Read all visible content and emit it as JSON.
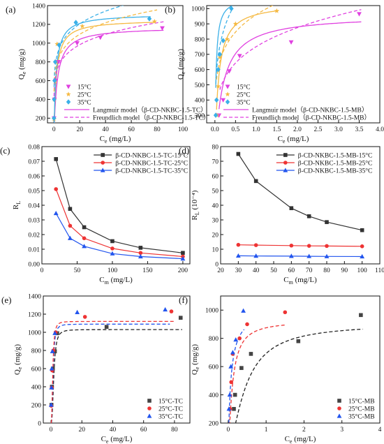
{
  "figure": {
    "panels": [
      "a",
      "b",
      "c",
      "d",
      "e",
      "f"
    ]
  },
  "chart_data": [
    {
      "id": "a",
      "panel_label": "(a)",
      "type": "scatter",
      "xlabel": "Ce (mg/L)",
      "ylabel": "Qe (mg/g)",
      "xlim": [
        -5,
        100
      ],
      "ylim": [
        150,
        1400
      ],
      "xticks": [
        0,
        20,
        40,
        60,
        80,
        100
      ],
      "yticks": [
        200,
        400,
        600,
        800,
        1000,
        1200,
        1400
      ],
      "legend_position": "bottom-right",
      "series": [
        {
          "name": "15°C",
          "kind": "points",
          "marker": "tri-down",
          "color": "#e040e0",
          "points": [
            [
              0.1,
              200
            ],
            [
              0.4,
              400
            ],
            [
              1.2,
              600
            ],
            [
              3.5,
              800
            ],
            [
              18,
              1000
            ],
            [
              36,
              1060
            ],
            [
              84,
              1160
            ]
          ]
        },
        {
          "name": "25°C",
          "kind": "points",
          "marker": "star",
          "color": "#f5b942",
          "points": [
            [
              0.1,
              190
            ],
            [
              0.3,
              400
            ],
            [
              0.9,
              590
            ],
            [
              1.5,
              800
            ],
            [
              2.5,
              990
            ],
            [
              22,
              1180
            ],
            [
              78,
              1230
            ]
          ]
        },
        {
          "name": "35°C",
          "kind": "points",
          "marker": "diamond",
          "color": "#3ab0e8",
          "points": [
            [
              0.05,
              200
            ],
            [
              0.2,
              400
            ],
            [
              0.5,
              600
            ],
            [
              1,
              800
            ],
            [
              4,
              980
            ],
            [
              17,
              1220
            ],
            [
              74,
              1260
            ]
          ]
        },
        {
          "name": "Langmuir model（β-CD-NKBC-1.5-TC）",
          "kind": "legend-line",
          "dash": "solid",
          "color": "#e040e0"
        },
        {
          "name": "Freundlich model（β-CD-NKBC-1.5-TC）",
          "kind": "legend-line",
          "dash": "dashed",
          "color": "#e040e0"
        },
        {
          "kind": "curve",
          "model": "langmuir",
          "qmax": 1170,
          "K": 0.4,
          "x_range": [
            0.05,
            85
          ],
          "dash": "solid",
          "color": "#e040e0"
        },
        {
          "kind": "curve",
          "model": "langmuir",
          "qmax": 1250,
          "K": 0.55,
          "x_range": [
            0.05,
            78
          ],
          "dash": "solid",
          "color": "#f5b942"
        },
        {
          "kind": "curve",
          "model": "langmuir",
          "qmax": 1310,
          "K": 0.6,
          "x_range": [
            0.05,
            75
          ],
          "dash": "solid",
          "color": "#3ab0e8"
        },
        {
          "kind": "curve",
          "model": "freundlich",
          "Kf": 620,
          "n": 6.5,
          "x_range": [
            0.1,
            85
          ],
          "dash": "dashed",
          "color": "#e040e0"
        },
        {
          "kind": "curve",
          "model": "freundlich",
          "Kf": 690,
          "n": 6.5,
          "x_range": [
            0.1,
            80
          ],
          "dash": "dashed",
          "color": "#f5b942"
        },
        {
          "kind": "curve",
          "model": "freundlich",
          "Kf": 760,
          "n": 6.5,
          "x_range": [
            0.1,
            75
          ],
          "dash": "dashed",
          "color": "#3ab0e8"
        }
      ]
    },
    {
      "id": "b",
      "panel_label": "(b)",
      "type": "scatter",
      "xlabel": "Ce (mg/L)",
      "ylabel": "Qe (mg/g)",
      "xlim": [
        -0.2,
        4.0
      ],
      "ylim": [
        250,
        1020
      ],
      "xticks": [
        0.0,
        0.5,
        1.0,
        1.5,
        2.0,
        2.5,
        3.0,
        3.5,
        4.0
      ],
      "yticks": [
        300,
        400,
        500,
        600,
        700,
        800,
        900,
        1000
      ],
      "legend_position": "bottom-right",
      "series": [
        {
          "name": "15°C",
          "kind": "points",
          "marker": "tri-down",
          "color": "#e040e0",
          "points": [
            [
              0.1,
              300
            ],
            [
              0.2,
              400
            ],
            [
              0.35,
              590
            ],
            [
              0.6,
              690
            ],
            [
              1.85,
              780
            ],
            [
              3.5,
              965
            ]
          ]
        },
        {
          "name": "25°C",
          "kind": "points",
          "marker": "star",
          "color": "#f5b942",
          "points": [
            [
              0.05,
              300
            ],
            [
              0.08,
              490
            ],
            [
              0.12,
              680
            ],
            [
              0.3,
              800
            ],
            [
              0.5,
              900
            ],
            [
              1.5,
              985
            ]
          ]
        },
        {
          "name": "35°C",
          "kind": "points",
          "marker": "diamond",
          "color": "#3ab0e8",
          "points": [
            [
              0.02,
              300
            ],
            [
              0.04,
              400
            ],
            [
              0.08,
              600
            ],
            [
              0.12,
              700
            ],
            [
              0.2,
              790
            ],
            [
              0.4,
              1000
            ]
          ]
        },
        {
          "name": "Langmuir model（β-CD-NKBC-1.5-MB）",
          "kind": "legend-line",
          "dash": "solid",
          "color": "#e040e0"
        },
        {
          "name": "Freundlich model（β-CD-NKBC-1.5-MB）",
          "kind": "legend-line",
          "dash": "dashed",
          "color": "#e040e0"
        },
        {
          "kind": "curve",
          "model": "langmuir",
          "qmax": 960,
          "K": 5.5,
          "x_range": [
            0.1,
            3.55
          ],
          "dash": "solid",
          "color": "#e040e0"
        },
        {
          "kind": "curve",
          "model": "langmuir",
          "qmax": 1040,
          "K": 12,
          "x_range": [
            0.04,
            1.55
          ],
          "dash": "solid",
          "color": "#f5b942"
        },
        {
          "kind": "curve",
          "model": "langmuir",
          "qmax": 1080,
          "K": 40,
          "x_range": [
            0.02,
            0.42
          ],
          "dash": "solid",
          "color": "#3ab0e8"
        },
        {
          "kind": "curve",
          "model": "freundlich",
          "Kf": 750,
          "n": 4.5,
          "x_range": [
            0.12,
            3.55
          ],
          "dash": "dashed",
          "color": "#e040e0"
        },
        {
          "kind": "curve",
          "model": "freundlich",
          "Kf": 960,
          "n": 5.5,
          "x_range": [
            0.04,
            1.55
          ],
          "dash": "dashed",
          "color": "#f5b942"
        },
        {
          "kind": "curve",
          "model": "freundlich",
          "Kf": 1210,
          "n": 4.5,
          "x_range": [
            0.02,
            0.42
          ],
          "dash": "dashed",
          "color": "#3ab0e8"
        }
      ]
    },
    {
      "id": "c",
      "panel_label": "(c)",
      "type": "line",
      "xlabel": "Cm (mg/L)",
      "ylabel": "RL",
      "xlim": [
        0,
        210
      ],
      "ylim": [
        0.0,
        0.08
      ],
      "xticks": [
        0,
        50,
        100,
        150,
        200
      ],
      "yticks": [
        0.0,
        0.01,
        0.02,
        0.03,
        0.04,
        0.05,
        0.06,
        0.07,
        0.08
      ],
      "legend_position": "top-right",
      "series": [
        {
          "name": "β-CD-NKBC-1.5-TC-15°C",
          "kind": "line",
          "marker": "square",
          "color": "#333333",
          "points": [
            [
              20,
              0.0715
            ],
            [
              40,
              0.0375
            ],
            [
              60,
              0.025
            ],
            [
              100,
              0.0155
            ],
            [
              140,
              0.011
            ],
            [
              200,
              0.0075
            ]
          ]
        },
        {
          "name": "β-CD-NKBC-1.5-TC-25°C",
          "kind": "line",
          "marker": "circle",
          "color": "#ee3333",
          "points": [
            [
              20,
              0.051
            ],
            [
              40,
              0.026
            ],
            [
              60,
              0.0175
            ],
            [
              100,
              0.0105
            ],
            [
              140,
              0.0075
            ],
            [
              200,
              0.005
            ]
          ]
        },
        {
          "name": "β-CD-NKBC-1.5-TC-35°C",
          "kind": "line",
          "marker": "triangle",
          "color": "#2255ee",
          "points": [
            [
              20,
              0.0345
            ],
            [
              40,
              0.0175
            ],
            [
              60,
              0.012
            ],
            [
              100,
              0.007
            ],
            [
              140,
              0.005
            ],
            [
              200,
              0.0035
            ]
          ]
        }
      ]
    },
    {
      "id": "d",
      "panel_label": "(d)",
      "type": "line",
      "xlabel": "Cm (mg/L)",
      "ylabel": "RL (10⁻⁴)",
      "xlim": [
        20,
        110
      ],
      "ylim": [
        0,
        80
      ],
      "xticks": [
        20,
        30,
        40,
        50,
        60,
        70,
        80,
        90,
        100,
        110
      ],
      "yticks": [
        0,
        10,
        20,
        30,
        40,
        50,
        60,
        70,
        80
      ],
      "legend_position": "top-right",
      "series": [
        {
          "name": "β-CD-NKBC-1.5-MB-15°C",
          "kind": "line",
          "marker": "square",
          "color": "#333333",
          "points": [
            [
              30,
              75
            ],
            [
              40,
              56.5
            ],
            [
              60,
              38
            ],
            [
              70,
              32.5
            ],
            [
              80,
              28.5
            ],
            [
              100,
              23
            ]
          ]
        },
        {
          "name": "β-CD-NKBC-1.5-MB-25°C",
          "kind": "line",
          "marker": "circle",
          "color": "#ee3333",
          "points": [
            [
              30,
              13
            ],
            [
              40,
              12.8
            ],
            [
              60,
              12.5
            ],
            [
              70,
              12.3
            ],
            [
              80,
              12.2
            ],
            [
              100,
              12
            ]
          ]
        },
        {
          "name": "β-CD-NKBC-1.5-MB-35°C",
          "kind": "line",
          "marker": "triangle",
          "color": "#2255ee",
          "points": [
            [
              30,
              5.5
            ],
            [
              40,
              5.4
            ],
            [
              60,
              5.3
            ],
            [
              70,
              5.2
            ],
            [
              80,
              5.1
            ],
            [
              100,
              5
            ]
          ]
        }
      ]
    },
    {
      "id": "e",
      "panel_label": "(e)",
      "type": "scatter",
      "xlabel": "Ce (mg/L)",
      "ylabel": "Qe (mg/g)",
      "xlim": [
        -5,
        90
      ],
      "ylim": [
        0,
        1400
      ],
      "xticks": [
        0,
        20,
        40,
        60,
        80
      ],
      "yticks": [
        0,
        200,
        400,
        600,
        800,
        1000,
        1200,
        1400
      ],
      "legend_position": "bottom-right",
      "series": [
        {
          "name": "15°C-TC",
          "kind": "points",
          "marker": "square",
          "color": "#444444",
          "points": [
            [
              0.3,
              200
            ],
            [
              0.6,
              400
            ],
            [
              1.2,
              600
            ],
            [
              2.5,
              790
            ],
            [
              4,
              990
            ],
            [
              36,
              1060
            ],
            [
              84,
              1160
            ]
          ]
        },
        {
          "name": "25°C-TC",
          "kind": "points",
          "marker": "circle",
          "color": "#ee3333",
          "points": [
            [
              0.2,
              190
            ],
            [
              0.5,
              390
            ],
            [
              0.8,
              580
            ],
            [
              1.5,
              800
            ],
            [
              3,
              1000
            ],
            [
              22,
              1170
            ],
            [
              78,
              1230
            ]
          ]
        },
        {
          "name": "35°C-TC",
          "kind": "points",
          "marker": "triangle",
          "color": "#2255ee",
          "points": [
            [
              0.1,
              200
            ],
            [
              0.3,
              390
            ],
            [
              0.5,
              600
            ],
            [
              0.9,
              790
            ],
            [
              2.5,
              990
            ],
            [
              17,
              1220
            ],
            [
              74,
              1250
            ]
          ]
        },
        {
          "kind": "curve",
          "model": "sips",
          "qmax": 1030,
          "K": 0.55,
          "n": 2.6,
          "x_range": [
            0.05,
            85
          ],
          "dash": "dashed",
          "color": "#222222"
        },
        {
          "kind": "curve",
          "model": "sips",
          "qmax": 1090,
          "K": 0.75,
          "n": 2.6,
          "x_range": [
            0.05,
            77
          ],
          "dash": "dashed",
          "color": "#2255ee"
        },
        {
          "kind": "curve",
          "model": "sips",
          "qmax": 1120,
          "K": 0.85,
          "n": 2.6,
          "x_range": [
            0.05,
            80
          ],
          "dash": "dashed",
          "color": "#ee3333"
        }
      ]
    },
    {
      "id": "f",
      "panel_label": "(f)",
      "type": "scatter",
      "xlabel": "Ce (mg/L)",
      "ylabel": "Qe (mg/g)",
      "xlim": [
        -0.2,
        4
      ],
      "ylim": [
        200,
        1100
      ],
      "xticks": [
        0,
        1,
        2,
        3,
        4
      ],
      "yticks": [
        200,
        400,
        600,
        800,
        1000
      ],
      "legend_position": "bottom-right",
      "series": [
        {
          "name": "15°C-MB",
          "kind": "points",
          "marker": "square",
          "color": "#444444",
          "points": [
            [
              0.15,
              300
            ],
            [
              0.18,
              400
            ],
            [
              0.35,
              590
            ],
            [
              0.6,
              690
            ],
            [
              1.85,
              780
            ],
            [
              3.5,
              965
            ]
          ]
        },
        {
          "name": "25°C-MB",
          "kind": "points",
          "marker": "circle",
          "color": "#ee3333",
          "points": [
            [
              0.05,
              300
            ],
            [
              0.08,
              490
            ],
            [
              0.12,
              690
            ],
            [
              0.3,
              800
            ],
            [
              0.5,
              900
            ],
            [
              1.5,
              985
            ]
          ]
        },
        {
          "name": "35°C-MB",
          "kind": "points",
          "marker": "triangle",
          "color": "#2255ee",
          "points": [
            [
              0.02,
              300
            ],
            [
              0.04,
              400
            ],
            [
              0.07,
              600
            ],
            [
              0.12,
              700
            ],
            [
              0.2,
              790
            ],
            [
              0.4,
              995
            ]
          ]
        },
        {
          "kind": "curve",
          "model": "sips",
          "qmax": 905,
          "K": 2.2,
          "n": 1.5,
          "x_range": [
            0.13,
            3.55
          ],
          "dash": "dashed",
          "color": "#222222"
        },
        {
          "kind": "curve",
          "model": "sips",
          "qmax": 925,
          "K": 9,
          "n": 1.3,
          "x_range": [
            0.03,
            1.5
          ],
          "dash": "dashed",
          "color": "#ee3333"
        },
        {
          "kind": "curve",
          "model": "sips",
          "qmax": 1010,
          "K": 14,
          "n": 1.0,
          "x_range": [
            0.01,
            0.42
          ],
          "dash": "dashed",
          "color": "#2255ee"
        }
      ]
    }
  ]
}
